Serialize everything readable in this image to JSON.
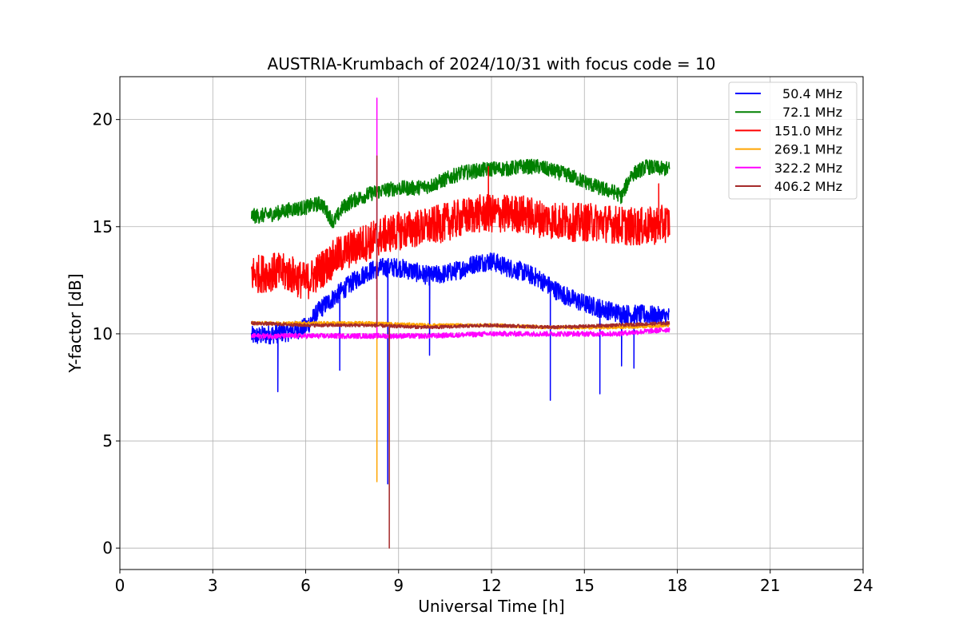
{
  "chart_data": {
    "type": "line",
    "title": "AUSTRIA-Krumbach of 2024/10/31 with focus code = 10",
    "xlabel": "Universal Time [h]",
    "ylabel": "Y-factor [dB]",
    "xlim": [
      0,
      24
    ],
    "ylim": [
      -1,
      22
    ],
    "xticks": [
      0,
      3,
      6,
      9,
      12,
      15,
      18,
      21,
      24
    ],
    "yticks": [
      0,
      5,
      10,
      15,
      20
    ],
    "grid": true,
    "legend_position": "top-right",
    "series": [
      {
        "name": "50.4 MHz",
        "color": "#0000ff",
        "x": [
          4.25,
          4.5,
          5,
          5.5,
          6,
          6.5,
          7,
          7.5,
          8,
          8.5,
          9,
          9.5,
          10,
          10.5,
          11,
          11.5,
          12,
          12.5,
          13,
          13.5,
          14,
          14.5,
          15,
          15.5,
          16,
          16.5,
          17,
          17.5,
          17.75
        ],
        "y": [
          9.9,
          9.9,
          10.0,
          10.1,
          10.3,
          11.2,
          11.8,
          12.4,
          12.9,
          13.1,
          13.1,
          12.9,
          12.7,
          12.8,
          13.0,
          13.3,
          13.4,
          13.1,
          12.9,
          12.6,
          12.1,
          11.7,
          11.4,
          11.2,
          11.0,
          10.9,
          10.9,
          10.8,
          10.8
        ],
        "noise": 0.45,
        "spikes": [
          [
            5.1,
            7.3
          ],
          [
            7.1,
            8.3
          ],
          [
            10.0,
            9.0
          ],
          [
            13.9,
            6.9
          ],
          [
            15.5,
            7.2
          ],
          [
            16.2,
            8.5
          ],
          [
            16.6,
            8.4
          ],
          [
            8.65,
            3.0
          ]
        ]
      },
      {
        "name": "72.1 MHz",
        "color": "#008000",
        "x": [
          4.25,
          4.5,
          5,
          5.5,
          6,
          6.5,
          6.9,
          7.2,
          7.5,
          8,
          8.5,
          9,
          9.5,
          10,
          10.5,
          11,
          11.5,
          12,
          12.5,
          13,
          13.5,
          14,
          14.5,
          15,
          15.5,
          16,
          16.2,
          16.5,
          17,
          17.5,
          17.75
        ],
        "y": [
          15.5,
          15.5,
          15.6,
          15.8,
          15.9,
          16.1,
          15.2,
          15.9,
          16.2,
          16.5,
          16.7,
          16.8,
          16.8,
          16.9,
          17.2,
          17.5,
          17.6,
          17.7,
          17.7,
          17.8,
          17.8,
          17.6,
          17.4,
          17.1,
          16.8,
          16.6,
          16.4,
          17.4,
          17.8,
          17.7,
          17.7
        ],
        "noise": 0.35,
        "spikes": []
      },
      {
        "name": "151.0 MHz",
        "color": "#ff0000",
        "x": [
          4.25,
          4.5,
          5,
          5.5,
          6,
          6.5,
          7,
          7.5,
          8,
          8.5,
          9,
          9.5,
          10,
          10.5,
          11,
          11.5,
          12,
          12.5,
          13,
          13.5,
          14,
          14.5,
          15,
          15.5,
          16,
          16.5,
          17,
          17.5,
          17.75
        ],
        "y": [
          12.8,
          12.8,
          12.9,
          12.8,
          12.4,
          13.0,
          13.6,
          14.0,
          14.3,
          14.6,
          14.8,
          14.9,
          15.0,
          15.2,
          15.4,
          15.6,
          15.6,
          15.6,
          15.6,
          15.4,
          15.3,
          15.2,
          15.2,
          15.2,
          15.1,
          15.0,
          15.0,
          15.1,
          15.2
        ],
        "noise": 0.9,
        "spikes": [
          [
            8.3,
            11.6
          ],
          [
            11.9,
            17.8
          ],
          [
            17.4,
            17.0
          ]
        ]
      },
      {
        "name": "269.1 MHz",
        "color": "#ffa500",
        "x": [
          4.25,
          6,
          8,
          10,
          12,
          14,
          16,
          17.75
        ],
        "y": [
          10.5,
          10.5,
          10.5,
          10.4,
          10.4,
          10.3,
          10.3,
          10.4
        ],
        "noise": 0.08,
        "spikes": [
          [
            8.3,
            3.1
          ]
        ]
      },
      {
        "name": "322.2 MHz",
        "color": "#ff00ff",
        "x": [
          4.25,
          6,
          8,
          10,
          12,
          14,
          16,
          17.75
        ],
        "y": [
          9.9,
          9.9,
          9.9,
          9.9,
          10.0,
          10.0,
          10.0,
          10.2
        ],
        "noise": 0.12,
        "spikes": [
          [
            8.3,
            21.0
          ]
        ]
      },
      {
        "name": "406.2 MHz",
        "color": "#a52a2a",
        "x": [
          4.25,
          6,
          8,
          10,
          12,
          14,
          16,
          17.75
        ],
        "y": [
          10.5,
          10.4,
          10.4,
          10.3,
          10.4,
          10.3,
          10.4,
          10.5
        ],
        "noise": 0.08,
        "spikes": [
          [
            8.3,
            18.3
          ],
          [
            8.7,
            0.0
          ]
        ]
      }
    ]
  }
}
